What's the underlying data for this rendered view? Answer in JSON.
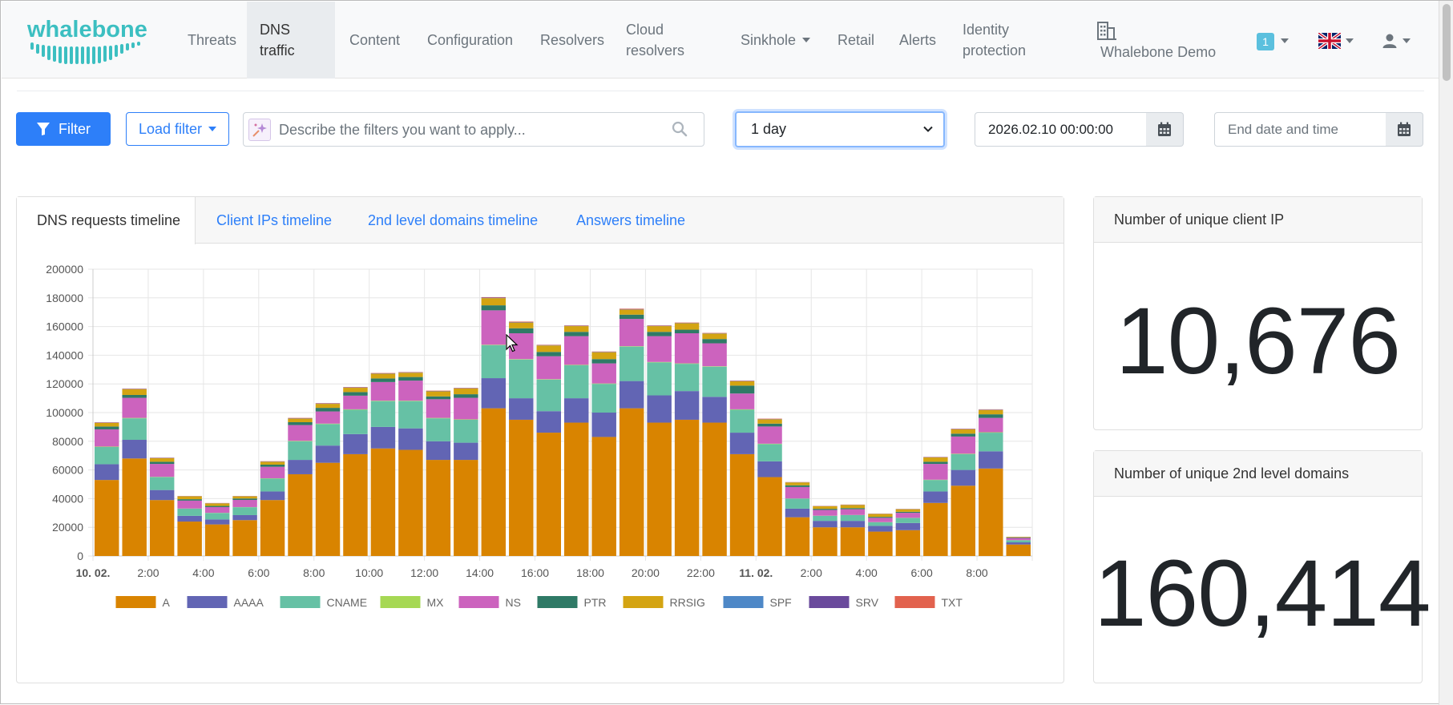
{
  "brand": {
    "name": "whalebone"
  },
  "nav": {
    "items": [
      {
        "label": "Threats"
      },
      {
        "label": "DNS traffic",
        "line1": "DNS",
        "line2": "traffic"
      },
      {
        "label": "Content"
      },
      {
        "label": "Configuration"
      },
      {
        "label": "Resolvers"
      },
      {
        "label": "Cloud resolvers",
        "line1": "Cloud",
        "line2": "resolvers"
      },
      {
        "label": "Sinkhole"
      },
      {
        "label": "Retail"
      },
      {
        "label": "Alerts"
      },
      {
        "label": "Identity protection",
        "line1": "Identity",
        "line2": "protection"
      }
    ],
    "organization": "Whalebone Demo",
    "notification_count": "1"
  },
  "toolbar": {
    "filter_label": "Filter",
    "load_filter_label": "Load filter",
    "ai_placeholder": "Describe the filters you want to apply...",
    "time_range": "1 day",
    "time_range_options": [
      "1 day"
    ],
    "start_date": "2026.02.10 00:00:00",
    "end_date_placeholder": "End date and time"
  },
  "tabs": [
    {
      "label": "DNS requests timeline",
      "active": true
    },
    {
      "label": "Client IPs timeline"
    },
    {
      "label": "2nd level domains timeline"
    },
    {
      "label": "Answers timeline"
    }
  ],
  "stats": {
    "unique_client_ip": {
      "title": "Number of unique client IP",
      "value": "10,676"
    },
    "unique_domains": {
      "title": "Number of unique 2nd level domains",
      "value": "160,414"
    }
  },
  "chart_data": {
    "type": "bar",
    "stacked": true,
    "ylim": [
      0,
      200000
    ],
    "yticks": [
      0,
      20000,
      40000,
      60000,
      80000,
      100000,
      120000,
      140000,
      160000,
      180000,
      200000
    ],
    "xtick_labels": [
      {
        "label": "10. 02.",
        "bold": true,
        "index": 0
      },
      {
        "label": "2:00",
        "index": 2
      },
      {
        "label": "4:00",
        "index": 4
      },
      {
        "label": "6:00",
        "index": 6
      },
      {
        "label": "8:00",
        "index": 8
      },
      {
        "label": "10:00",
        "index": 10
      },
      {
        "label": "12:00",
        "index": 12
      },
      {
        "label": "14:00",
        "index": 14
      },
      {
        "label": "16:00",
        "index": 16
      },
      {
        "label": "18:00",
        "index": 18
      },
      {
        "label": "20:00",
        "index": 20
      },
      {
        "label": "22:00",
        "index": 22
      },
      {
        "label": "11. 02.",
        "bold": true,
        "index": 24
      },
      {
        "label": "2:00",
        "index": 26
      },
      {
        "label": "4:00",
        "index": 28
      },
      {
        "label": "6:00",
        "index": 30
      },
      {
        "label": "8:00",
        "index": 32
      }
    ],
    "categories": [
      "10.02 0:00",
      "1:00",
      "2:00",
      "3:00",
      "4:00",
      "5:00",
      "6:00",
      "7:00",
      "8:00",
      "9:00",
      "10:00",
      "11:00",
      "12:00",
      "13:00",
      "14:00",
      "15:00",
      "16:00",
      "17:00",
      "18:00",
      "19:00",
      "20:00",
      "21:00",
      "22:00",
      "23:00",
      "11.02 0:00",
      "1:00",
      "2:00",
      "3:00",
      "4:00",
      "5:00",
      "6:00",
      "7:00",
      "8:00",
      "9:00"
    ],
    "legend_placement": "bottom",
    "grid": true,
    "series": [
      {
        "name": "A",
        "color": "#d98400",
        "values": [
          53000,
          68000,
          39000,
          24000,
          22000,
          25000,
          39000,
          57000,
          65000,
          71000,
          75000,
          74000,
          67000,
          67000,
          103000,
          95000,
          86000,
          93000,
          83000,
          103000,
          93000,
          95000,
          93000,
          71000,
          55000,
          27000,
          20000,
          20000,
          17000,
          18000,
          37000,
          49000,
          61000,
          8000
        ]
      },
      {
        "name": "AAAA",
        "color": "#6265b4",
        "values": [
          11000,
          13000,
          7000,
          4000,
          3500,
          3500,
          6000,
          10000,
          12000,
          14000,
          15000,
          15000,
          13000,
          12000,
          21000,
          15000,
          15000,
          17000,
          17000,
          19000,
          19000,
          20000,
          18000,
          15000,
          11000,
          6000,
          4500,
          4500,
          4000,
          5000,
          8000,
          11000,
          12000,
          1500
        ]
      },
      {
        "name": "CNAME",
        "color": "#66c1a5",
        "values": [
          12000,
          15000,
          9000,
          5000,
          4500,
          5500,
          9000,
          13000,
          15000,
          17000,
          18000,
          19000,
          16000,
          16000,
          23000,
          27000,
          22000,
          23000,
          20000,
          24000,
          23000,
          19000,
          21000,
          16000,
          12000,
          7000,
          3500,
          4000,
          2500,
          3500,
          8000,
          11000,
          13000,
          1500
        ]
      },
      {
        "name": "MX",
        "color": "#a6d854",
        "values": [
          300,
          300,
          200,
          100,
          100,
          100,
          200,
          300,
          300,
          300,
          300,
          300,
          300,
          300,
          300,
          300,
          300,
          300,
          300,
          300,
          300,
          300,
          300,
          300,
          300,
          100,
          100,
          100,
          100,
          100,
          200,
          300,
          300,
          50
        ]
      },
      {
        "name": "NS",
        "color": "#cc63be",
        "values": [
          12000,
          14000,
          9000,
          5500,
          4000,
          5000,
          8000,
          11000,
          8500,
          9500,
          13000,
          14000,
          13000,
          15000,
          24000,
          18000,
          16000,
          20000,
          14000,
          19000,
          18000,
          21000,
          16000,
          11000,
          12000,
          8000,
          4000,
          4000,
          3000,
          3500,
          11000,
          12000,
          10000,
          1500
        ]
      },
      {
        "name": "PTR",
        "color": "#2f7a66",
        "values": [
          2000,
          2000,
          1500,
          1000,
          800,
          1000,
          1500,
          2000,
          2500,
          2500,
          2500,
          2500,
          2000,
          2500,
          3500,
          3500,
          3000,
          3000,
          3000,
          3000,
          3000,
          2500,
          3000,
          5500,
          2000,
          1200,
          800,
          800,
          700,
          700,
          1500,
          2000,
          2500,
          400
        ]
      },
      {
        "name": "RRSIG",
        "color": "#d4a412",
        "values": [
          2500,
          4000,
          2500,
          2000,
          1800,
          1500,
          2000,
          2500,
          2800,
          3000,
          3300,
          3000,
          3500,
          4000,
          5000,
          4000,
          4500,
          4000,
          4800,
          3500,
          4000,
          4500,
          3800,
          3000,
          3000,
          2000,
          1800,
          2200,
          2000,
          1800,
          3000,
          3000,
          3000,
          400
        ]
      },
      {
        "name": "SPF",
        "color": "#4e88c7",
        "values": [
          100,
          100,
          100,
          50,
          50,
          50,
          100,
          100,
          100,
          100,
          100,
          100,
          100,
          100,
          100,
          100,
          100,
          100,
          100,
          100,
          100,
          100,
          100,
          100,
          100,
          50,
          50,
          50,
          50,
          50,
          100,
          100,
          100,
          20
        ]
      },
      {
        "name": "SRV",
        "color": "#6a4a9c",
        "values": [
          200,
          200,
          150,
          100,
          100,
          100,
          150,
          200,
          200,
          200,
          200,
          200,
          200,
          200,
          300,
          300,
          200,
          200,
          200,
          300,
          200,
          200,
          200,
          200,
          200,
          100,
          100,
          100,
          100,
          100,
          150,
          200,
          200,
          30
        ]
      },
      {
        "name": "TXT",
        "color": "#e2624e",
        "values": [
          200,
          200,
          150,
          100,
          100,
          100,
          150,
          200,
          200,
          200,
          200,
          200,
          200,
          200,
          300,
          300,
          200,
          200,
          200,
          300,
          200,
          200,
          200,
          200,
          200,
          100,
          100,
          100,
          100,
          100,
          150,
          200,
          200,
          30
        ]
      }
    ]
  },
  "colors": {
    "accent": "#2d7ff9",
    "badge": "#5bc0de",
    "logo": "#3cbfc1"
  },
  "icons": [
    "filter-icon",
    "sparkle-icon",
    "search-icon",
    "calendar-icon",
    "building-icon",
    "flag-icon",
    "user-icon"
  ]
}
